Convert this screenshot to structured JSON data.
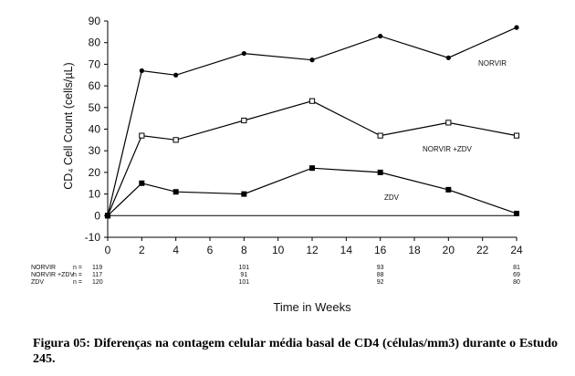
{
  "chart_data": {
    "type": "line",
    "ylabel": "CD₄ Cell Count (cells/µL)",
    "xlabel": "Time in Weeks",
    "ylim": [
      -10,
      90
    ],
    "yticks": [
      -10,
      0,
      10,
      20,
      30,
      40,
      50,
      60,
      70,
      80,
      90
    ],
    "xlim": [
      0,
      24
    ],
    "xticks": [
      0,
      2,
      4,
      6,
      8,
      10,
      12,
      14,
      16,
      18,
      20,
      22,
      24
    ],
    "grid": false,
    "reference_line_y": 0,
    "series": [
      {
        "name": "NORVIR",
        "marker": "filled-circle",
        "color": "#000000",
        "x": [
          0,
          2,
          4,
          8,
          12,
          16,
          20,
          24
        ],
        "y": [
          0,
          67,
          65,
          75,
          72,
          83,
          73,
          87
        ]
      },
      {
        "name": "NORVIR +ZDV",
        "marker": "open-square",
        "color": "#000000",
        "x": [
          0,
          2,
          4,
          8,
          12,
          16,
          20,
          24
        ],
        "y": [
          0,
          37,
          35,
          44,
          53,
          37,
          43,
          37
        ]
      },
      {
        "name": "ZDV",
        "marker": "filled-square",
        "color": "#000000",
        "x": [
          0,
          2,
          4,
          8,
          12,
          16,
          20,
          24
        ],
        "y": [
          0,
          15,
          11,
          10,
          22,
          20,
          12,
          1
        ]
      }
    ],
    "n_table": {
      "x": [
        0,
        8,
        16,
        24
      ],
      "rows": [
        {
          "label": "NORVIR",
          "n_label": "n =",
          "values": [
            "119",
            "101",
            "93",
            "81"
          ]
        },
        {
          "label": "NORVIR +ZDV",
          "n_label": "n =",
          "values": [
            "117",
            "91",
            "88",
            "69"
          ]
        },
        {
          "label": "ZDV",
          "n_label": "n =",
          "values": [
            "120",
            "101",
            "92",
            "80"
          ]
        }
      ]
    }
  },
  "caption": "Figura 05: Diferenças na contagem celular média basal de CD4 (células/mm3) durante o Estudo 245."
}
